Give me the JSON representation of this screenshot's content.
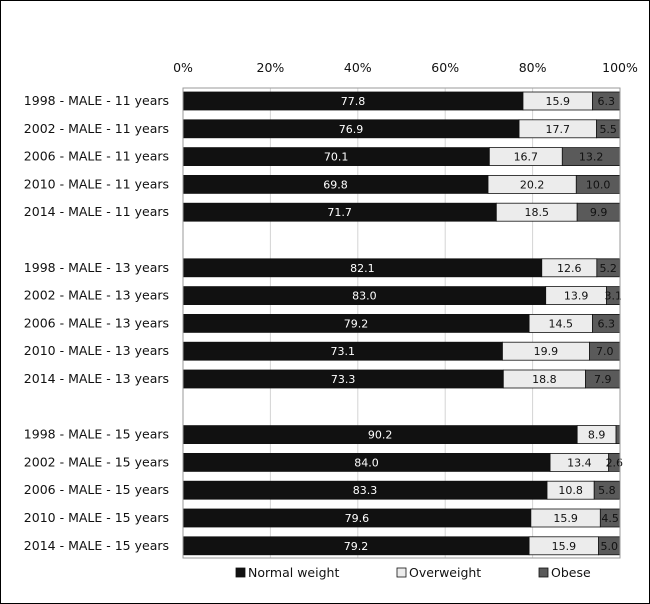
{
  "chart_data": {
    "type": "bar",
    "orientation": "horizontal",
    "stacked": true,
    "percent_stacked": true,
    "xlim": [
      0,
      100
    ],
    "x_ticks": [
      "0%",
      "20%",
      "40%",
      "60%",
      "80%",
      "100%"
    ],
    "grid": "vertical",
    "legend_position": "bottom",
    "categories": [
      "1998 - MALE - 11 years",
      "2002 - MALE - 11 years",
      "2006 - MALE - 11 years",
      "2010 - MALE - 11  years",
      "2014 - MALE - 11  years",
      "",
      "1998 - MALE - 13 years",
      "2002 - MALE - 13 years",
      "2006 - MALE - 13 years",
      "2010 - MALE - 13  years",
      "2014 - MALE - 13  years",
      "",
      "1998 - MALE - 15 years",
      "2002 - MALE - 15 years",
      "2006 - MALE - 15 years",
      "2010 - MALE - 15  years",
      "2014 - MALE - 15  years"
    ],
    "series": [
      {
        "name": "Normal weight",
        "color": "#111111",
        "label_color": "#ffffff",
        "values": [
          77.8,
          76.9,
          70.1,
          69.8,
          71.7,
          null,
          82.1,
          83.0,
          79.2,
          73.1,
          73.3,
          null,
          90.2,
          84.0,
          83.3,
          79.6,
          79.2
        ],
        "labels": [
          "77.8",
          "76.9",
          "70.1",
          "69.8",
          "71.7",
          "",
          "82.1",
          "83.0",
          "79.2",
          "73.1",
          "73.3",
          "",
          "90.2",
          "84.0",
          "83.3",
          "79.6",
          "79.2"
        ]
      },
      {
        "name": "Overweight",
        "color": "#ececec",
        "label_color": "#111111",
        "values": [
          15.9,
          17.7,
          16.7,
          20.2,
          18.5,
          null,
          12.6,
          13.9,
          14.5,
          19.9,
          18.8,
          null,
          8.9,
          13.4,
          10.8,
          15.9,
          15.9
        ],
        "labels": [
          "15.9",
          "17.7",
          "16.7",
          "20.2",
          "18.5",
          "",
          "12.6",
          "13.9",
          "14.5",
          "19.9",
          "18.8",
          "",
          "8.9",
          "13.4",
          "10.8",
          "15.9",
          "15.9"
        ]
      },
      {
        "name": "Obese",
        "color": "#5a5a5a",
        "label_color": "#111111",
        "values": [
          6.3,
          5.5,
          13.2,
          10.0,
          9.9,
          null,
          5.2,
          3.1,
          6.3,
          7.0,
          7.9,
          null,
          0.9,
          2.6,
          5.8,
          4.5,
          5.0
        ],
        "labels": [
          "6.3",
          "5.5",
          "13.2",
          "10.0",
          "9.9",
          "",
          "5.2",
          "3.1",
          "6.3",
          "7.0",
          "7.9",
          "",
          "",
          "2.6",
          "5.8",
          "4.5",
          "5.0"
        ]
      }
    ]
  }
}
